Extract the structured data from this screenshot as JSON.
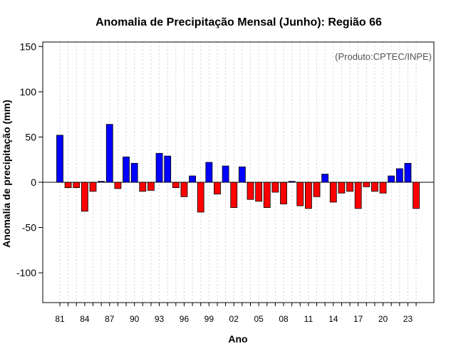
{
  "chart_data": {
    "type": "bar",
    "title": "Anomalia de Precipitação Mensal (Junho): Região 66",
    "xlabel": "Ano",
    "ylabel": "Anomalia de precipitação (mm)",
    "credit": "(Produto:CPTEC/INPE)",
    "ylim": [
      -133,
      155
    ],
    "yticks": [
      -100,
      -50,
      0,
      50,
      100,
      150
    ],
    "grid": true,
    "colors": {
      "positive": "#0000ff",
      "negative": "#ff0000",
      "border": "#000000"
    },
    "years": [
      1981,
      1982,
      1983,
      1984,
      1985,
      1986,
      1987,
      1988,
      1989,
      1990,
      1991,
      1992,
      1993,
      1994,
      1995,
      1996,
      1997,
      1998,
      1999,
      2000,
      2001,
      2002,
      2003,
      2004,
      2005,
      2006,
      2007,
      2008,
      2009,
      2010,
      2011,
      2012,
      2013,
      2014,
      2015,
      2016,
      2017,
      2018,
      2019,
      2020,
      2021,
      2022,
      2023,
      2024
    ],
    "values": [
      52,
      -6,
      -6,
      -32,
      -10,
      1,
      64,
      -7,
      28,
      21,
      -10,
      -9,
      32,
      29,
      -6,
      -16,
      7,
      -33,
      22,
      -13,
      18,
      -28,
      17,
      -19,
      -21,
      -28,
      -11,
      -24,
      1,
      -26,
      -29,
      -16,
      9,
      -22,
      -12,
      -10,
      -29,
      -5,
      -10,
      -12,
      7,
      15,
      21,
      -29
    ],
    "xtick_labels": [
      {
        "year": 1981,
        "label": "81"
      },
      {
        "year": 1984,
        "label": "84"
      },
      {
        "year": 1987,
        "label": "87"
      },
      {
        "year": 1990,
        "label": "90"
      },
      {
        "year": 1993,
        "label": "93"
      },
      {
        "year": 1996,
        "label": "96"
      },
      {
        "year": 1999,
        "label": "99"
      },
      {
        "year": 2002,
        "label": "02"
      },
      {
        "year": 2005,
        "label": "05"
      },
      {
        "year": 2008,
        "label": "08"
      },
      {
        "year": 2011,
        "label": "11"
      },
      {
        "year": 2014,
        "label": "14"
      },
      {
        "year": 2017,
        "label": "17"
      },
      {
        "year": 2020,
        "label": "20"
      },
      {
        "year": 2023,
        "label": "23"
      }
    ]
  }
}
